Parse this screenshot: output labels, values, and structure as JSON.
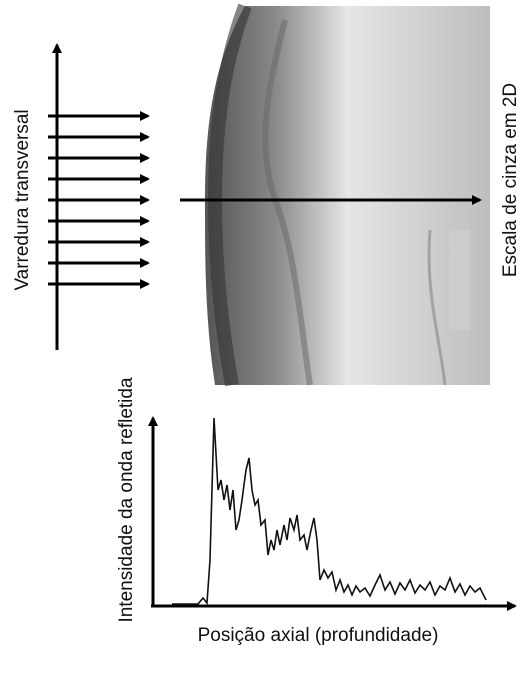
{
  "labels": {
    "scan": "Varredura transversal",
    "grayscale": "Escala de cinza em 2D",
    "y_axis": "Intensidade da onda refletida",
    "x_axis": "Posição axial (profundidade)"
  }
}
